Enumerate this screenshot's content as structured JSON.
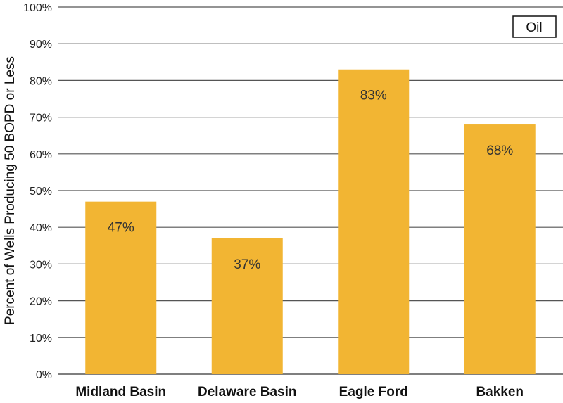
{
  "chart_data": {
    "type": "bar",
    "categories": [
      "Midland Basin",
      "Delaware Basin",
      "Eagle Ford",
      "Bakken"
    ],
    "values": [
      47,
      37,
      83,
      68
    ],
    "data_labels": [
      "47%",
      "37%",
      "83%",
      "68%"
    ],
    "ylabel": "Percent of Wells Producing 50 BOPD or Less",
    "xlabel": "",
    "ylim": [
      0,
      100
    ],
    "yticks": [
      0,
      10,
      20,
      30,
      40,
      50,
      60,
      70,
      80,
      90,
      100
    ],
    "ytick_labels": [
      "0%",
      "10%",
      "20%",
      "30%",
      "40%",
      "50%",
      "60%",
      "70%",
      "80%",
      "90%",
      "100%"
    ],
    "legend": {
      "label": "Oil",
      "placement": "top-right"
    },
    "grid": true,
    "colors": {
      "bar": "#F2B533",
      "grid": "#555555"
    }
  }
}
